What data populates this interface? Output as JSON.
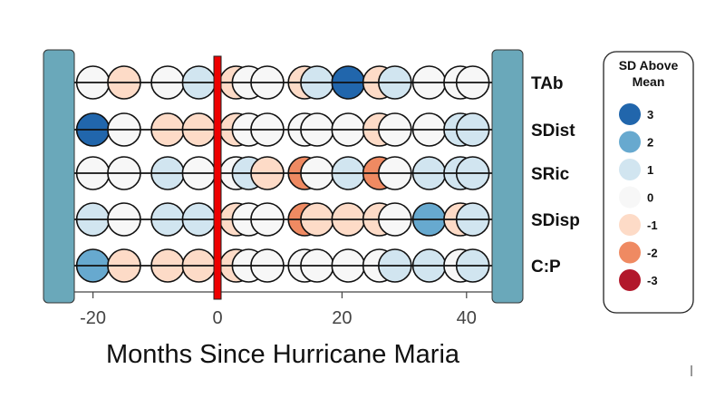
{
  "chart_data": {
    "type": "scatter",
    "xlabel": "Months Since Hurricane Maria",
    "xlim": [
      -28,
      46
    ],
    "xticks": [
      -20,
      0,
      20,
      40
    ],
    "xtick_labels": [
      "-20",
      "0",
      "20",
      "40"
    ],
    "reference_line_x": 0,
    "rows": [
      "TAb",
      "SDist",
      "SRic",
      "SDisp",
      "C:P"
    ],
    "x": [
      -20,
      -15,
      -8,
      -3,
      3,
      5,
      8,
      14,
      16,
      21,
      26,
      28.5,
      34,
      39,
      41
    ],
    "series": [
      {
        "name": "TAb",
        "values": [
          0,
          -1,
          0,
          1,
          -1,
          0,
          0,
          -1,
          1,
          3,
          -1,
          1,
          0,
          0,
          0
        ]
      },
      {
        "name": "SDist",
        "values": [
          3,
          0,
          -1,
          -1,
          -1,
          0,
          0,
          0,
          0,
          0,
          -1,
          0,
          0,
          1,
          1
        ]
      },
      {
        "name": "SRic",
        "values": [
          0,
          0,
          1,
          0,
          0,
          1,
          -1,
          -2,
          0,
          1,
          -2,
          0,
          1,
          1,
          1
        ]
      },
      {
        "name": "SDisp",
        "values": [
          1,
          0,
          1,
          1,
          -1,
          0,
          0,
          -2,
          -1,
          -1,
          -1,
          0,
          2,
          -1,
          1
        ]
      },
      {
        "name": "C:P",
        "values": [
          2,
          -1,
          -1,
          -1,
          -1,
          0,
          0,
          0,
          0,
          0,
          0,
          1,
          1,
          0,
          1
        ]
      }
    ],
    "legend": {
      "title_line1": "SD Above",
      "title_line2": "Mean",
      "placement": "right",
      "levels": [
        3,
        2,
        1,
        0,
        -1,
        -2,
        -3
      ],
      "labels": [
        "3",
        "2",
        "1",
        "0",
        "-1",
        "-2",
        "-3"
      ],
      "colors": [
        "#2166ac",
        "#67a9cf",
        "#d1e5f0",
        "#f7f7f7",
        "#fddbc7",
        "#ef8a62",
        "#b2182b"
      ]
    }
  },
  "colors": {
    "frame": "#6aa8ba",
    "reference": "#ee0000"
  }
}
